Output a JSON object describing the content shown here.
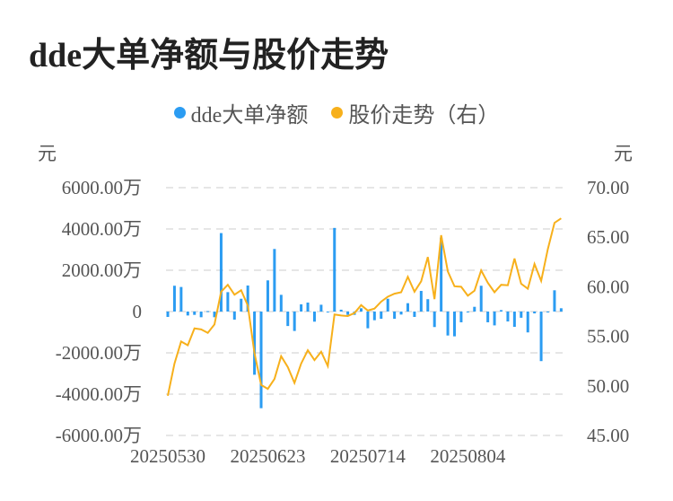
{
  "chart_data": {
    "type": "bar+line",
    "title": "dde大单净额与股价走势",
    "left_unit": "元",
    "right_unit": "元",
    "legend": [
      {
        "name": "dde大单净额",
        "color": "#2b9cf2"
      },
      {
        "name": "股价走势（右）",
        "color": "#f7b01b"
      }
    ],
    "legend_position": "top-center",
    "y_left": {
      "range": [
        -6000,
        6000
      ],
      "ticks": [
        "6000.00万",
        "4000.00万",
        "2000.00万",
        "0",
        "-2000.00万",
        "-4000.00万",
        "-6000.00万"
      ],
      "tick_values": [
        6000,
        4000,
        2000,
        0,
        -2000,
        -4000,
        -6000
      ]
    },
    "y_right": {
      "range": [
        45,
        70
      ],
      "ticks": [
        "70.00",
        "65.00",
        "60.00",
        "55.00",
        "50.00",
        "45.00"
      ],
      "tick_values": [
        70,
        65,
        60,
        55,
        50,
        45
      ]
    },
    "x_ticks": [
      {
        "index": 0,
        "label": "20250530"
      },
      {
        "index": 15,
        "label": "20250623"
      },
      {
        "index": 30,
        "label": "20250714"
      },
      {
        "index": 45,
        "label": "20250804"
      }
    ],
    "grid": true,
    "series": [
      {
        "name": "dde大单净额",
        "type": "bar",
        "unit": "万元",
        "values": [
          -260,
          1250,
          1190,
          -190,
          -160,
          -275,
          20,
          -275,
          3800,
          940,
          -390,
          620,
          1260,
          -3060,
          -4680,
          1510,
          3030,
          810,
          -700,
          -940,
          350,
          435,
          -490,
          330,
          -30,
          4050,
          90,
          -160,
          -160,
          160,
          -810,
          -420,
          -350,
          620,
          -350,
          -145,
          405,
          -260,
          1000,
          600,
          -750,
          3580,
          -1160,
          -1200,
          -520,
          -20,
          230,
          1250,
          -520,
          -670,
          70,
          -480,
          -740,
          -300,
          -1010,
          -90,
          -2400,
          -10,
          1030,
          160
        ]
      },
      {
        "name": "股价走势（右）",
        "type": "line",
        "unit": "元",
        "values": [
          49.0,
          52.25,
          54.48,
          54.1,
          55.8,
          55.7,
          55.35,
          56.2,
          59.5,
          60.2,
          59.2,
          59.65,
          58.1,
          53.3,
          50.1,
          49.7,
          50.7,
          53.0,
          51.9,
          50.3,
          52.25,
          53.6,
          52.6,
          53.45,
          52.0,
          57.2,
          57.1,
          57.05,
          57.35,
          58.15,
          57.6,
          57.8,
          58.5,
          59.0,
          59.3,
          59.45,
          61.0,
          59.5,
          60.55,
          63.0,
          58.75,
          65.2,
          61.55,
          60.05,
          60.0,
          59.1,
          59.6,
          61.65,
          60.4,
          59.45,
          60.2,
          60.15,
          62.85,
          60.3,
          59.8,
          62.3,
          60.6,
          63.8,
          66.45,
          66.9
        ]
      }
    ]
  }
}
